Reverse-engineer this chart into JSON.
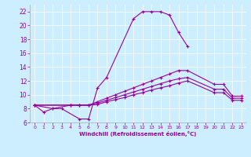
{
  "xlabel": "Windchill (Refroidissement éolien,°C)",
  "background_color": "#cceeff",
  "line_color": "#990099",
  "xlim": [
    -0.5,
    23.5
  ],
  "ylim": [
    6,
    23
  ],
  "xticks": [
    0,
    1,
    2,
    3,
    4,
    5,
    6,
    7,
    8,
    9,
    10,
    11,
    12,
    13,
    14,
    15,
    16,
    17,
    18,
    19,
    20,
    21,
    22,
    23
  ],
  "yticks": [
    6,
    8,
    10,
    12,
    14,
    16,
    18,
    20,
    22
  ],
  "series": [
    {
      "x": [
        0,
        1,
        2,
        3,
        5,
        6,
        7,
        8,
        11,
        12,
        13,
        14,
        15,
        16,
        17
      ],
      "y": [
        8.5,
        7.5,
        8.0,
        8.0,
        6.5,
        6.5,
        11.0,
        12.5,
        21.0,
        22.0,
        22.0,
        22.0,
        21.5,
        19.0,
        17.0
      ]
    },
    {
      "x": [
        0,
        2,
        4,
        5,
        6,
        7,
        8,
        9,
        10,
        11,
        12,
        13,
        14,
        15,
        16,
        17,
        20,
        21,
        22,
        23
      ],
      "y": [
        8.5,
        8.0,
        8.5,
        8.5,
        8.5,
        9.0,
        9.5,
        10.0,
        10.5,
        11.0,
        11.5,
        12.0,
        12.5,
        13.0,
        13.5,
        13.5,
        11.5,
        11.5,
        9.8,
        9.8
      ]
    },
    {
      "x": [
        0,
        4,
        5,
        6,
        7,
        8,
        9,
        10,
        11,
        12,
        13,
        14,
        15,
        16,
        17,
        20,
        21,
        22,
        23
      ],
      "y": [
        8.5,
        8.5,
        8.5,
        8.5,
        8.8,
        9.2,
        9.6,
        10.0,
        10.4,
        10.8,
        11.2,
        11.6,
        12.0,
        12.3,
        12.5,
        10.8,
        10.8,
        9.5,
        9.5
      ]
    },
    {
      "x": [
        0,
        4,
        5,
        6,
        7,
        8,
        9,
        10,
        11,
        12,
        13,
        14,
        15,
        16,
        17,
        20,
        21,
        22,
        23
      ],
      "y": [
        8.5,
        8.5,
        8.5,
        8.5,
        8.6,
        9.0,
        9.3,
        9.6,
        10.0,
        10.3,
        10.7,
        11.0,
        11.3,
        11.7,
        12.0,
        10.3,
        10.3,
        9.2,
        9.2
      ]
    }
  ]
}
